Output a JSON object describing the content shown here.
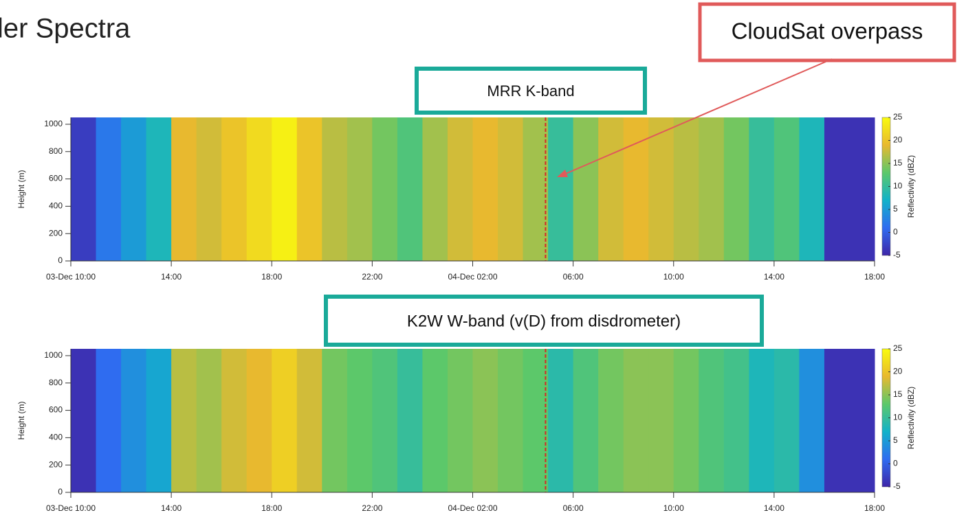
{
  "slide_title": "ler Spectra",
  "callout": "CloudSat overpass",
  "chart_data": [
    {
      "type": "heatmap",
      "title": "MRR K-band",
      "ylabel": "Height (m)",
      "colorbar_label": "Reflectivity (dBZ)",
      "xlim": [
        0,
        32
      ],
      "ylim": [
        0,
        1050
      ],
      "xticks": [
        {
          "value": 0,
          "label": "03-Dec 10:00"
        },
        {
          "value": 4,
          "label": "14:00"
        },
        {
          "value": 8,
          "label": "18:00"
        },
        {
          "value": 12,
          "label": "22:00"
        },
        {
          "value": 16,
          "label": "04-Dec 02:00"
        },
        {
          "value": 20,
          "label": "06:00"
        },
        {
          "value": 24,
          "label": "10:00"
        },
        {
          "value": 28,
          "label": "14:00"
        },
        {
          "value": 32,
          "label": "18:00"
        }
      ],
      "yticks": [
        0,
        200,
        400,
        600,
        800,
        1000
      ],
      "clim": [
        -5,
        25
      ],
      "cticks": [
        -5,
        0,
        5,
        10,
        15,
        20,
        25
      ],
      "colormap": [
        "#3e26a8",
        "#2f6cf0",
        "#12b2c9",
        "#5cc86a",
        "#e8b92f",
        "#f9fb0e"
      ],
      "x": [
        0.5,
        1.5,
        2.5,
        3.5,
        4.5,
        5.5,
        6.5,
        7.5,
        8.5,
        9.5,
        10.5,
        11.5,
        12.5,
        13.5,
        14.5,
        15.5,
        16.5,
        17.5,
        18.5,
        19.5,
        20.5,
        21.5,
        22.5,
        23.5,
        24.5,
        25.5,
        26.5,
        27.5,
        28.5,
        29.5,
        30.5,
        31.5
      ],
      "values": [
        -3,
        2,
        5,
        8,
        19,
        18,
        20,
        22,
        24,
        20,
        17,
        16,
        14,
        12,
        16,
        18,
        19,
        18,
        16,
        10,
        15,
        18,
        19,
        18,
        17,
        16,
        14,
        10,
        12,
        8,
        -4,
        -4
      ],
      "overpass_x": 18.9
    },
    {
      "type": "heatmap",
      "title": "K2W W-band (v(D) from disdrometer)",
      "ylabel": "Height (m)",
      "colorbar_label": "Reflectivity (dBZ)",
      "xlim": [
        0,
        32
      ],
      "ylim": [
        0,
        1050
      ],
      "xticks": [
        {
          "value": 0,
          "label": "03-Dec 10:00"
        },
        {
          "value": 4,
          "label": "14:00"
        },
        {
          "value": 8,
          "label": "18:00"
        },
        {
          "value": 12,
          "label": "22:00"
        },
        {
          "value": 16,
          "label": "04-Dec 02:00"
        },
        {
          "value": 20,
          "label": "06:00"
        },
        {
          "value": 24,
          "label": "10:00"
        },
        {
          "value": 28,
          "label": "14:00"
        },
        {
          "value": 32,
          "label": "18:00"
        }
      ],
      "yticks": [
        0,
        200,
        400,
        600,
        800,
        1000
      ],
      "clim": [
        -5,
        25
      ],
      "cticks": [
        -5,
        0,
        5,
        10,
        15,
        20,
        25
      ],
      "colormap": [
        "#3e26a8",
        "#2f6cf0",
        "#12b2c9",
        "#5cc86a",
        "#e8b92f",
        "#f9fb0e"
      ],
      "x": [
        0.5,
        1.5,
        2.5,
        3.5,
        4.5,
        5.5,
        6.5,
        7.5,
        8.5,
        9.5,
        10.5,
        11.5,
        12.5,
        13.5,
        14.5,
        15.5,
        16.5,
        17.5,
        18.5,
        19.5,
        20.5,
        21.5,
        22.5,
        23.5,
        24.5,
        25.5,
        26.5,
        27.5,
        28.5,
        29.5,
        30.5,
        31.5
      ],
      "values": [
        -4,
        1,
        4,
        6,
        17,
        16,
        18,
        19,
        21,
        18,
        14,
        13,
        12,
        10,
        13,
        14,
        15,
        14,
        13,
        9,
        12,
        14,
        15,
        15,
        14,
        12,
        11,
        8,
        9,
        4,
        -4,
        -4
      ],
      "overpass_x": 18.9
    }
  ]
}
